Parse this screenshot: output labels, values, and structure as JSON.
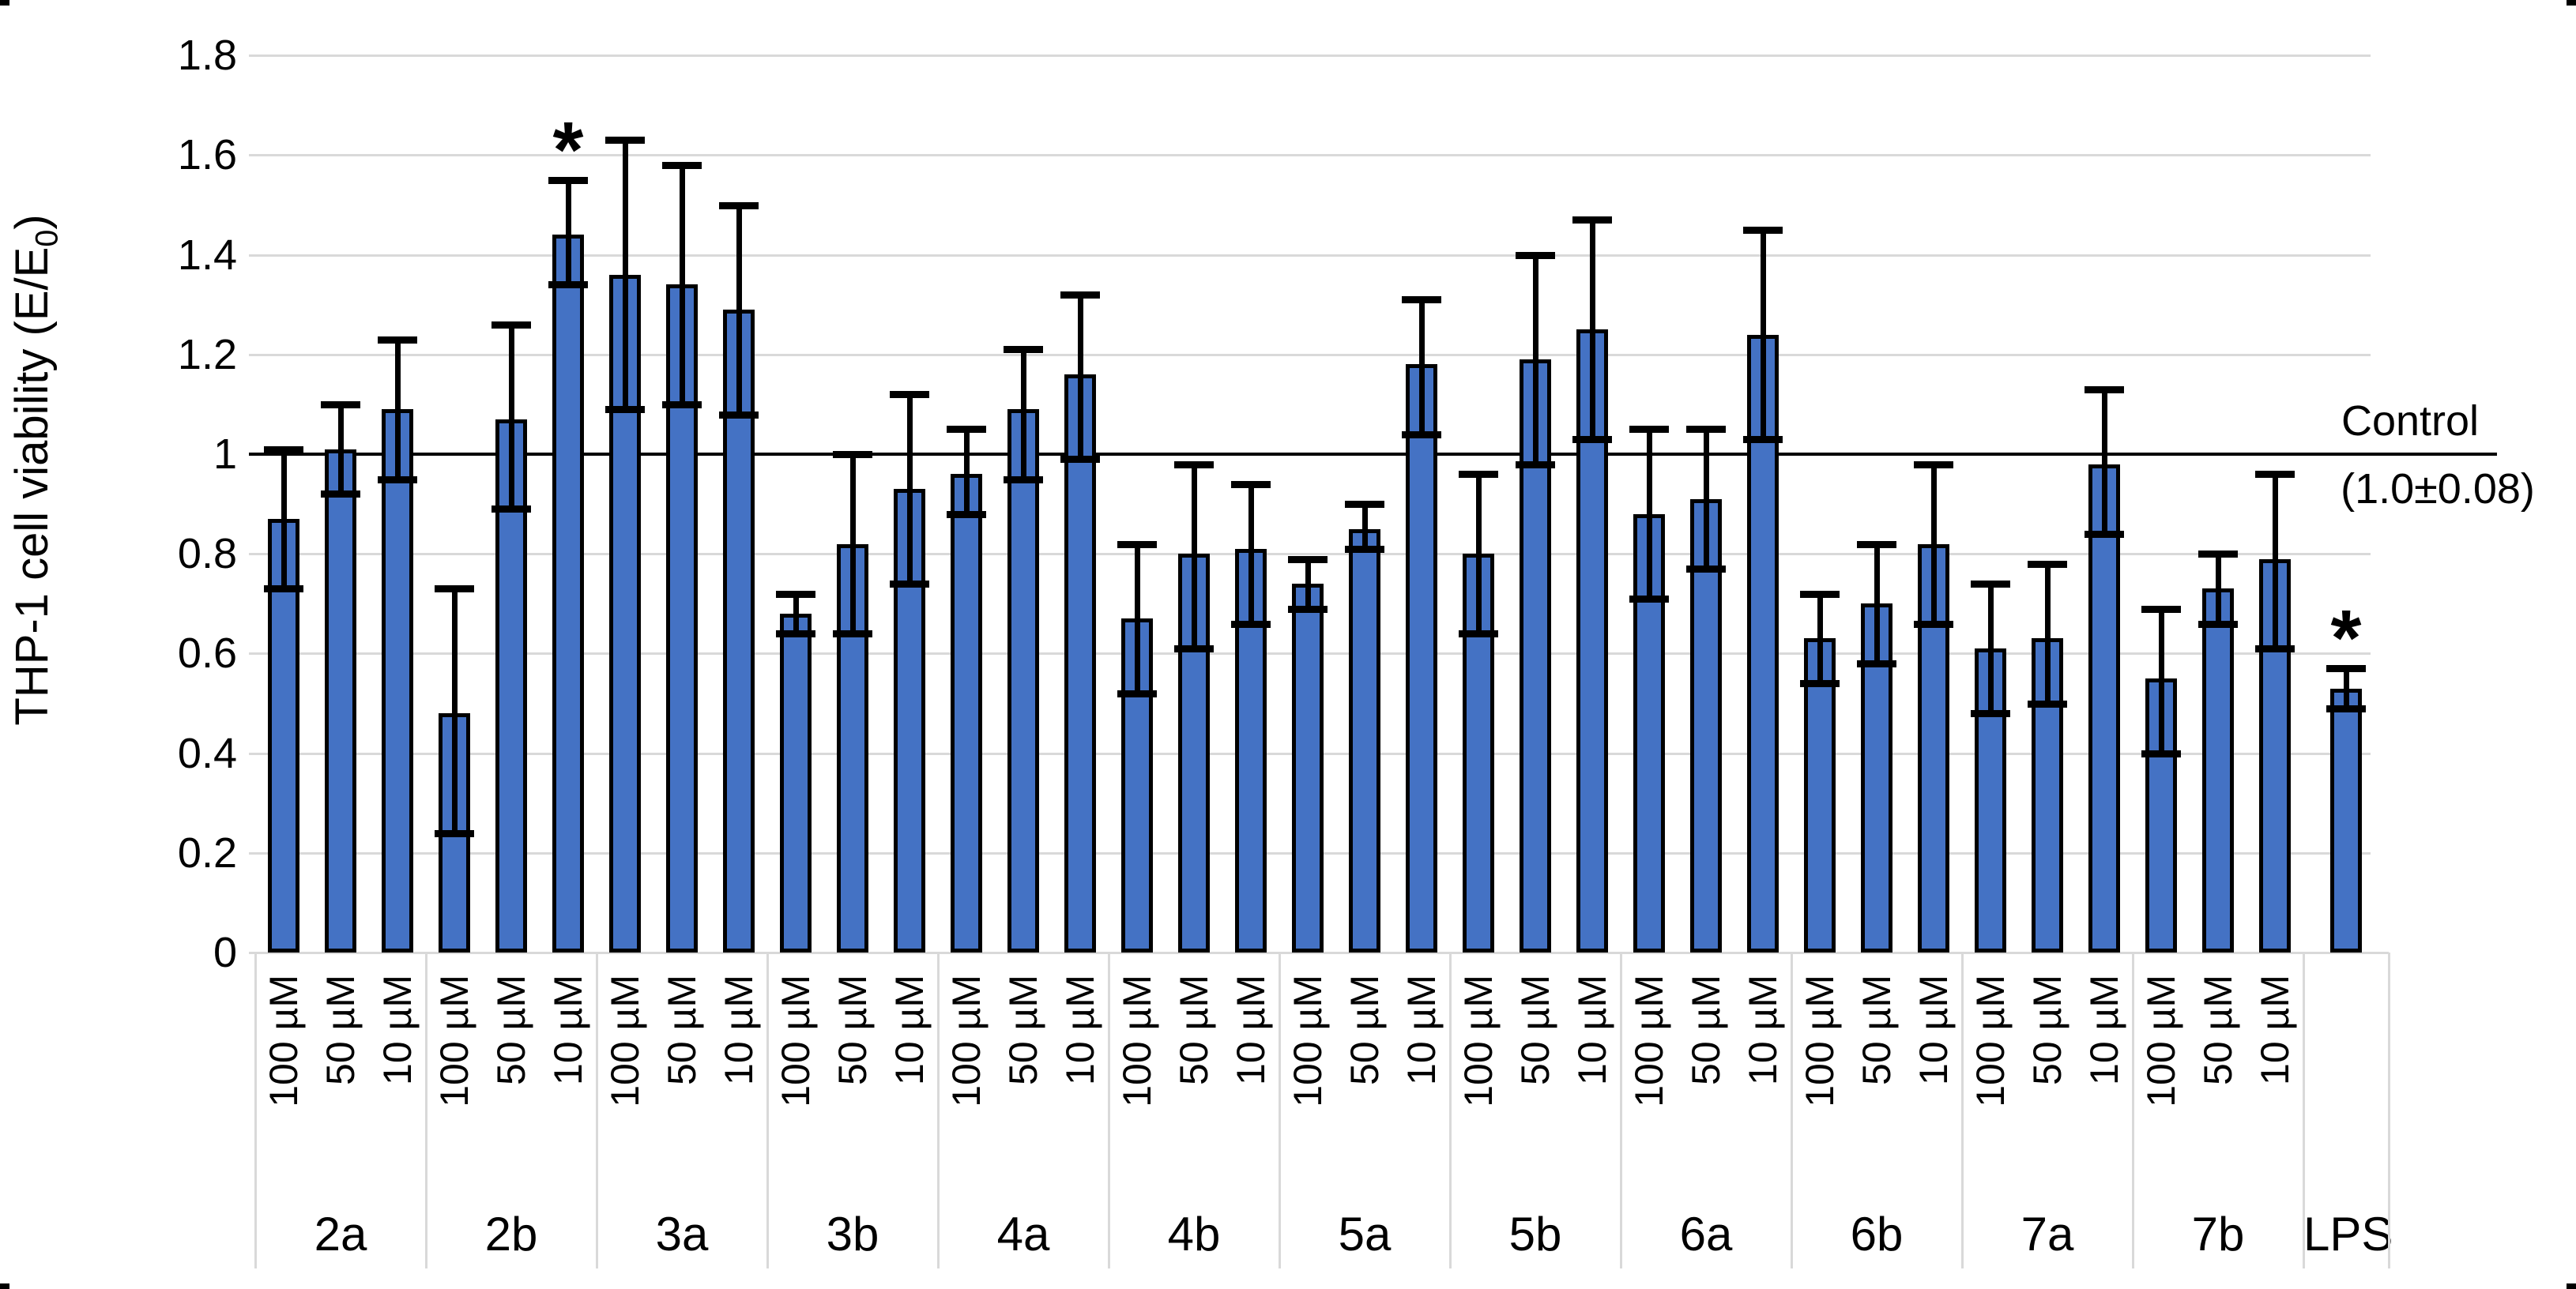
{
  "figure": {
    "y_axis": {
      "title_prefix": "THP-1 cell viability (E/E",
      "title_subscript": "0",
      "title_suffix": ")",
      "ticks": [
        "1.8",
        "1.6",
        "1.4",
        "1.2",
        "1",
        "0.8",
        "0.6",
        "0.4",
        "0.2",
        "0"
      ]
    },
    "control_line": {
      "label_line1": "Control",
      "label_line2": "(1.0±0.08)",
      "value": 1.0
    },
    "significance_marker": "*",
    "colors": {
      "bar_fill": "#4472C4",
      "bar_border": "#000000",
      "gridline": "#D9D9D9",
      "control_line": "#000000",
      "divider": "#D9D9D9"
    }
  },
  "chart_data": {
    "type": "bar",
    "title": "",
    "xlabel": "",
    "ylabel": "THP-1 cell viability (E/E0)",
    "ylim": [
      0,
      1.8
    ],
    "ytick_step": 0.2,
    "grid": true,
    "legend": "none",
    "reference_line": {
      "value": 1.0,
      "label": "Control (1.0±0.08)"
    },
    "concentration_labels": [
      "100 µM",
      "50 µM",
      "10 µM"
    ],
    "groups": [
      {
        "label": "2a",
        "bars": [
          {
            "conc": "100 µM",
            "value": 0.87,
            "err_low": 0.73,
            "err_high": 1.01,
            "star": false
          },
          {
            "conc": "50 µM",
            "value": 1.01,
            "err_low": 0.92,
            "err_high": 1.1,
            "star": false
          },
          {
            "conc": "10 µM",
            "value": 1.09,
            "err_low": 0.95,
            "err_high": 1.23,
            "star": false
          }
        ]
      },
      {
        "label": "2b",
        "bars": [
          {
            "conc": "100 µM",
            "value": 0.48,
            "err_low": 0.24,
            "err_high": 0.73,
            "star": false
          },
          {
            "conc": "50 µM",
            "value": 1.07,
            "err_low": 0.89,
            "err_high": 1.26,
            "star": false
          },
          {
            "conc": "10 µM",
            "value": 1.44,
            "err_low": 1.34,
            "err_high": 1.55,
            "star": true
          }
        ]
      },
      {
        "label": "3a",
        "bars": [
          {
            "conc": "100 µM",
            "value": 1.36,
            "err_low": 1.09,
            "err_high": 1.63,
            "star": false
          },
          {
            "conc": "50 µM",
            "value": 1.34,
            "err_low": 1.1,
            "err_high": 1.58,
            "star": false
          },
          {
            "conc": "10 µM",
            "value": 1.29,
            "err_low": 1.08,
            "err_high": 1.5,
            "star": false
          }
        ]
      },
      {
        "label": "3b",
        "bars": [
          {
            "conc": "100 µM",
            "value": 0.68,
            "err_low": 0.64,
            "err_high": 0.72,
            "star": false
          },
          {
            "conc": "50 µM",
            "value": 0.82,
            "err_low": 0.64,
            "err_high": 1.0,
            "star": false
          },
          {
            "conc": "10 µM",
            "value": 0.93,
            "err_low": 0.74,
            "err_high": 1.12,
            "star": false
          }
        ]
      },
      {
        "label": "4a",
        "bars": [
          {
            "conc": "100 µM",
            "value": 0.96,
            "err_low": 0.88,
            "err_high": 1.05,
            "star": false
          },
          {
            "conc": "50 µM",
            "value": 1.09,
            "err_low": 0.95,
            "err_high": 1.21,
            "star": false
          },
          {
            "conc": "10 µM",
            "value": 1.16,
            "err_low": 0.99,
            "err_high": 1.32,
            "star": false
          }
        ]
      },
      {
        "label": "4b",
        "bars": [
          {
            "conc": "100 µM",
            "value": 0.67,
            "err_low": 0.52,
            "err_high": 0.82,
            "star": false
          },
          {
            "conc": "50 µM",
            "value": 0.8,
            "err_low": 0.61,
            "err_high": 0.98,
            "star": false
          },
          {
            "conc": "10 µM",
            "value": 0.81,
            "err_low": 0.66,
            "err_high": 0.94,
            "star": false
          }
        ]
      },
      {
        "label": "5a",
        "bars": [
          {
            "conc": "100 µM",
            "value": 0.74,
            "err_low": 0.69,
            "err_high": 0.79,
            "star": false
          },
          {
            "conc": "50 µM",
            "value": 0.85,
            "err_low": 0.81,
            "err_high": 0.9,
            "star": false
          },
          {
            "conc": "10 µM",
            "value": 1.18,
            "err_low": 1.04,
            "err_high": 1.31,
            "star": false
          }
        ]
      },
      {
        "label": "5b",
        "bars": [
          {
            "conc": "100 µM",
            "value": 0.8,
            "err_low": 0.64,
            "err_high": 0.96,
            "star": false
          },
          {
            "conc": "50 µM",
            "value": 1.19,
            "err_low": 0.98,
            "err_high": 1.4,
            "star": false
          },
          {
            "conc": "10 µM",
            "value": 1.25,
            "err_low": 1.03,
            "err_high": 1.47,
            "star": false
          }
        ]
      },
      {
        "label": "6a",
        "bars": [
          {
            "conc": "100 µM",
            "value": 0.88,
            "err_low": 0.71,
            "err_high": 1.05,
            "star": false
          },
          {
            "conc": "50 µM",
            "value": 0.91,
            "err_low": 0.77,
            "err_high": 1.05,
            "star": false
          },
          {
            "conc": "10 µM",
            "value": 1.24,
            "err_low": 1.03,
            "err_high": 1.45,
            "star": false
          }
        ]
      },
      {
        "label": "6b",
        "bars": [
          {
            "conc": "100 µM",
            "value": 0.63,
            "err_low": 0.54,
            "err_high": 0.72,
            "star": false
          },
          {
            "conc": "50 µM",
            "value": 0.7,
            "err_low": 0.58,
            "err_high": 0.82,
            "star": false
          },
          {
            "conc": "10 µM",
            "value": 0.82,
            "err_low": 0.66,
            "err_high": 0.98,
            "star": false
          }
        ]
      },
      {
        "label": "7a",
        "bars": [
          {
            "conc": "100 µM",
            "value": 0.61,
            "err_low": 0.48,
            "err_high": 0.74,
            "star": false
          },
          {
            "conc": "50 µM",
            "value": 0.63,
            "err_low": 0.5,
            "err_high": 0.78,
            "star": false
          },
          {
            "conc": "10 µM",
            "value": 0.98,
            "err_low": 0.84,
            "err_high": 1.13,
            "star": false
          }
        ]
      },
      {
        "label": "7b",
        "bars": [
          {
            "conc": "100 µM",
            "value": 0.55,
            "err_low": 0.4,
            "err_high": 0.69,
            "star": false
          },
          {
            "conc": "50 µM",
            "value": 0.73,
            "err_low": 0.66,
            "err_high": 0.8,
            "star": false
          },
          {
            "conc": "10 µM",
            "value": 0.79,
            "err_low": 0.61,
            "err_high": 0.96,
            "star": false
          }
        ]
      },
      {
        "label": "LPS",
        "bars": [
          {
            "conc": "",
            "value": 0.53,
            "err_low": 0.49,
            "err_high": 0.57,
            "star": true
          }
        ]
      }
    ]
  }
}
